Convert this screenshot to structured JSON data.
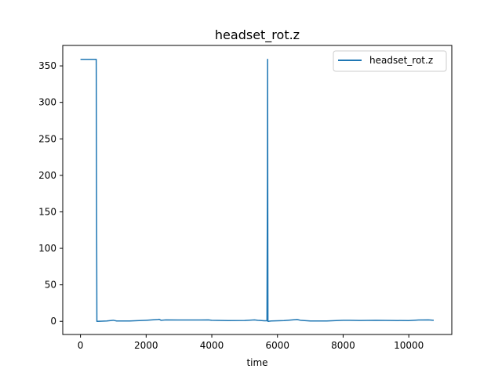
{
  "chart_data": {
    "type": "line",
    "title": "headset_rot.z",
    "xlabel": "time",
    "ylabel": "",
    "xlim": [
      -540,
      11310
    ],
    "ylim": [
      -18,
      378
    ],
    "xticks": [
      0,
      2000,
      4000,
      6000,
      8000,
      10000
    ],
    "yticks": [
      0,
      50,
      100,
      150,
      200,
      250,
      300,
      350
    ],
    "grid": false,
    "legend": {
      "position": "top-right"
    },
    "series": [
      {
        "name": "headset_rot.z",
        "color": "#1f77b4",
        "x": [
          0,
          480,
          490,
          500,
          800,
          1000,
          1100,
          1500,
          2000,
          2350,
          2400,
          2450,
          2600,
          3000,
          3500,
          3900,
          4000,
          4500,
          5000,
          5300,
          5400,
          5600,
          5680,
          5695,
          5700,
          5705,
          5710,
          5720,
          5800,
          6200,
          6600,
          6700,
          7000,
          7500,
          8000,
          8200,
          8500,
          9000,
          9500,
          10000,
          10300,
          10600,
          10760
        ],
        "y": [
          359,
          359,
          180,
          0,
          0.5,
          1.5,
          0.5,
          0.5,
          1.5,
          2.5,
          2.8,
          1.5,
          2,
          1.8,
          1.8,
          2,
          1.5,
          1,
          1.2,
          2,
          1.5,
          0.8,
          0.8,
          200,
          359,
          150,
          0,
          0,
          0.5,
          1,
          2.5,
          1.5,
          0.5,
          0.5,
          1.5,
          1.5,
          1.2,
          1.5,
          1.2,
          1,
          1.8,
          2,
          1.5
        ]
      }
    ]
  }
}
